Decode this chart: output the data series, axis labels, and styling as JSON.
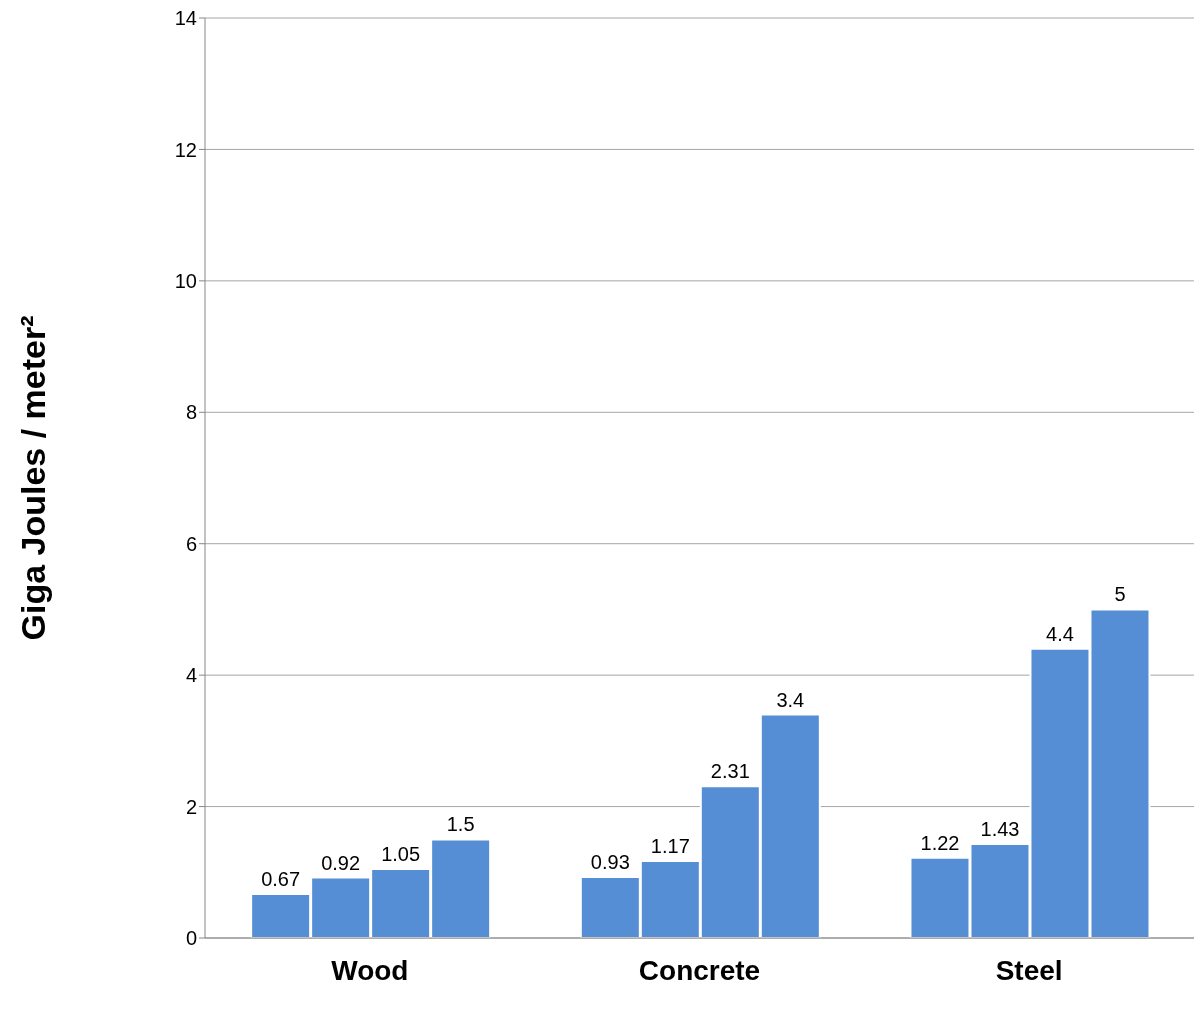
{
  "chart_data": {
    "type": "bar",
    "ylabel": "Giga Joules / meter²",
    "categories": [
      "Wood",
      "Concrete",
      "Steel"
    ],
    "series": [
      {
        "color": "#558ed5",
        "values": [
          0.67,
          0.93,
          1.22
        ]
      },
      {
        "color": "#558ed5",
        "values": [
          0.92,
          1.17,
          1.43
        ]
      },
      {
        "color": "#558ed5",
        "values": [
          1.05,
          2.31,
          4.4
        ]
      },
      {
        "color": "#558ed5",
        "values": [
          1.5,
          3.4,
          5
        ]
      }
    ],
    "ylim": [
      0,
      14
    ],
    "yticks": [
      0,
      2,
      4,
      6,
      8,
      10,
      12,
      14
    ],
    "grid": "y",
    "data_labels": true
  }
}
